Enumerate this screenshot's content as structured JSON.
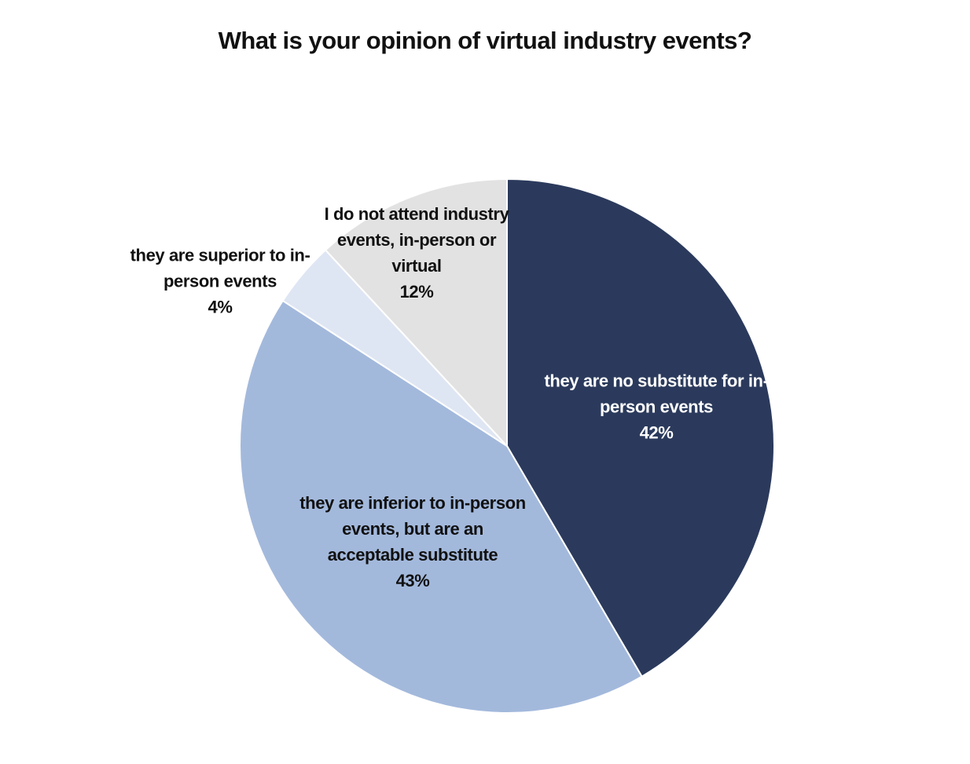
{
  "chart_data": {
    "type": "pie",
    "title": "What is your opinion of virtual industry events?",
    "categories": [
      "they are no substitute for in-person events",
      "they are inferior to in-person events, but are an acceptable substitute",
      "they are superior to in-person events",
      "I do not attend industry events, in-person or virtual"
    ],
    "values": [
      42,
      43,
      4,
      12
    ],
    "value_labels": [
      "42%",
      "43%",
      "4%",
      "12%"
    ],
    "colors": [
      "#2b3a5c",
      "#a3b9dc",
      "#dfe6f3",
      "#e3e2e2"
    ]
  }
}
